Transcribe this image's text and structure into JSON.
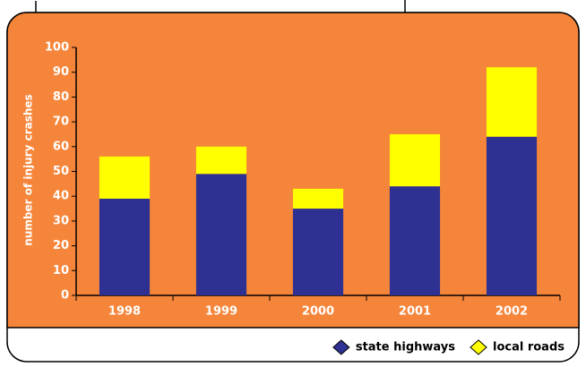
{
  "chart_data": {
    "type": "stacked_bar",
    "y_label": "number of injury crashes",
    "categories": [
      "1998",
      "1999",
      "2000",
      "2001",
      "2002"
    ],
    "series": [
      {
        "name": "state highways",
        "color": "#2e3192",
        "values": [
          39,
          49,
          35,
          44,
          64
        ]
      },
      {
        "name": "local roads",
        "color": "#ffff00",
        "values": [
          17,
          11,
          8,
          21,
          28
        ]
      }
    ],
    "ylim": [
      0,
      100
    ],
    "yticks": [
      0,
      10,
      20,
      30,
      40,
      50,
      60,
      70,
      80,
      90,
      100
    ],
    "background": "#f5853a",
    "text_color": "#ffffff",
    "legend": "bottom-right"
  }
}
